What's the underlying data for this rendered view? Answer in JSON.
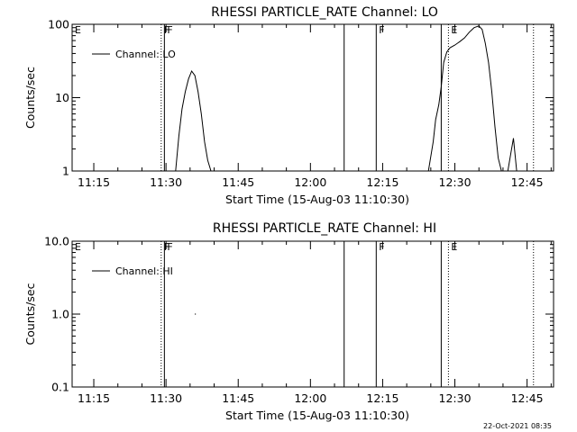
{
  "footer_text": "22-Oct-2021 08:35",
  "chart_data": [
    {
      "type": "line",
      "title": "RHESSI PARTICLE_RATE Channel: LO",
      "xlabel": "Start Time (15-Aug-03 11:10:30)",
      "ylabel": "Counts/sec",
      "xlim": [
        "11:10:30",
        "12:50:30"
      ],
      "yscale": "log",
      "ylim": [
        1,
        100
      ],
      "y_ticks": [
        "1",
        "10",
        "100"
      ],
      "x_ticks": [
        "11:15",
        "11:30",
        "11:45",
        "12:00",
        "12:15",
        "12:30",
        "12:45"
      ],
      "legend": "top-left",
      "series": [
        {
          "name": "Channel: LO",
          "x": [
            "11:32:00",
            "11:32:40",
            "11:33:20",
            "11:34:00",
            "11:34:40",
            "11:35:20",
            "11:36:00",
            "11:36:40",
            "11:37:20",
            "11:38:00",
            "11:38:40",
            "11:39:20",
            "11:40:00",
            "12:24:30",
            "12:25:30",
            "12:26:00",
            "12:26:40",
            "12:27:10",
            "12:27:40",
            "12:28:20",
            "12:29:00",
            "12:30:00",
            "12:31:00",
            "12:32:00",
            "12:33:00",
            "12:34:00",
            "12:35:00",
            "12:35:40",
            "12:36:20",
            "12:37:00",
            "12:37:40",
            "12:38:20",
            "12:39:00",
            "12:39:40",
            "12:40:20",
            "12:41:00",
            "12:41:40",
            "12:42:10",
            "12:42:50",
            "12:43:20",
            "12:43:50"
          ],
          "y": [
            1.0,
            3.0,
            7.0,
            12.0,
            18.0,
            23.0,
            20.0,
            12.0,
            6.0,
            2.5,
            1.4,
            1.0,
            1.0,
            1.0,
            2.5,
            5.0,
            8.0,
            14.0,
            30.0,
            42.0,
            48.0,
            52.0,
            58.0,
            65.0,
            78.0,
            90.0,
            95.0,
            85.0,
            55.0,
            30.0,
            12.0,
            4.0,
            1.5,
            1.0,
            1.0,
            1.0,
            1.8,
            2.8,
            1.0,
            1.0,
            1.0
          ]
        }
      ],
      "markers": [
        {
          "label": "E",
          "style": "dotted",
          "time": "11:10:30"
        },
        {
          "label": "F",
          "style": "dotted",
          "time": "11:29:00"
        },
        {
          "label": "F",
          "style": "solid",
          "time": "11:29:40"
        },
        {
          "label": "",
          "style": "solid",
          "time": "12:07:00"
        },
        {
          "label": "F",
          "style": "solid",
          "time": "12:13:40"
        },
        {
          "label": "",
          "style": "solid",
          "time": "12:27:10"
        },
        {
          "label": "E",
          "style": "dotted",
          "time": "12:28:40"
        },
        {
          "label": "",
          "style": "dotted",
          "time": "12:46:20"
        }
      ]
    },
    {
      "type": "line",
      "title": "RHESSI PARTICLE_RATE Channel: HI",
      "xlabel": "Start Time (15-Aug-03 11:10:30)",
      "ylabel": "Counts/sec",
      "xlim": [
        "11:10:30",
        "12:50:30"
      ],
      "yscale": "log",
      "ylim": [
        0.1,
        10
      ],
      "y_ticks": [
        "0.1",
        "1.0",
        "10.0"
      ],
      "x_ticks": [
        "11:15",
        "11:30",
        "11:45",
        "12:00",
        "12:15",
        "12:30",
        "12:45"
      ],
      "legend": "top-left",
      "series": [
        {
          "name": "Channel: HI",
          "x": [
            "11:36:00"
          ],
          "y": [
            1.0
          ]
        }
      ],
      "markers": [
        {
          "label": "E",
          "style": "dotted",
          "time": "11:10:30"
        },
        {
          "label": "F",
          "style": "dotted",
          "time": "11:29:00"
        },
        {
          "label": "F",
          "style": "solid",
          "time": "11:29:40"
        },
        {
          "label": "",
          "style": "solid",
          "time": "12:07:00"
        },
        {
          "label": "F",
          "style": "solid",
          "time": "12:13:40"
        },
        {
          "label": "",
          "style": "solid",
          "time": "12:27:10"
        },
        {
          "label": "E",
          "style": "dotted",
          "time": "12:28:40"
        },
        {
          "label": "",
          "style": "dotted",
          "time": "12:46:20"
        }
      ]
    }
  ]
}
